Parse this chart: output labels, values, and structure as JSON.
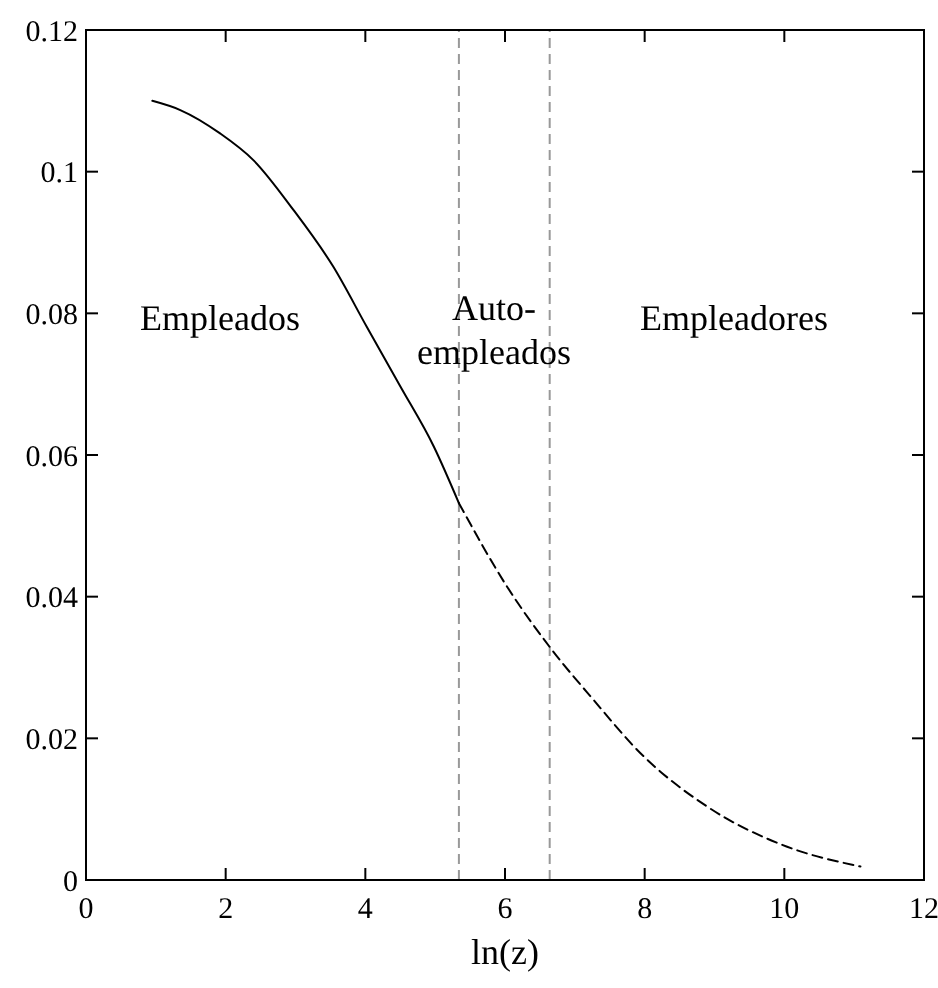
{
  "chart_data": {
    "type": "line",
    "xlabel": "ln(z)",
    "xlim": [
      0,
      12
    ],
    "xticks": [
      0,
      2,
      4,
      6,
      8,
      10,
      12
    ],
    "ylim": [
      0,
      0.12
    ],
    "yticks": [
      0,
      0.02,
      0.04,
      0.06,
      0.08,
      {
        "value": 0.1,
        "label": "0.1"
      },
      0.12
    ],
    "grid": false,
    "marker": "none",
    "series": [
      {
        "color": "#000000",
        "line_style": "solid",
        "x": [
          0.95,
          1.35,
          1.92,
          2.4,
          2.97,
          3.54,
          4.02,
          4.5,
          4.98,
          5.34
        ],
        "values": [
          0.11,
          0.1087,
          0.1054,
          0.1016,
          0.0946,
          0.0866,
          0.0781,
          0.0697,
          0.0612,
          0.0532
        ]
      },
      {
        "color": "#000000",
        "line_style": "dashed",
        "x": [
          5.34,
          6.03,
          6.64,
          7.27,
          7.94,
          8.89,
          10.04,
          11.09
        ],
        "values": [
          0.0532,
          0.0414,
          0.0329,
          0.0254,
          0.0179,
          0.0104,
          0.0047,
          0.0019
        ]
      }
    ],
    "ref_lines": [
      {
        "axis": "x",
        "value": 5.34,
        "color": "#999999",
        "line_style": "dashed"
      },
      {
        "axis": "x",
        "value": 6.64,
        "color": "#999999",
        "line_style": "dashed"
      }
    ],
    "annotations": [
      "Empleados",
      "Auto-\nempleados",
      "Empleadores"
    ]
  }
}
